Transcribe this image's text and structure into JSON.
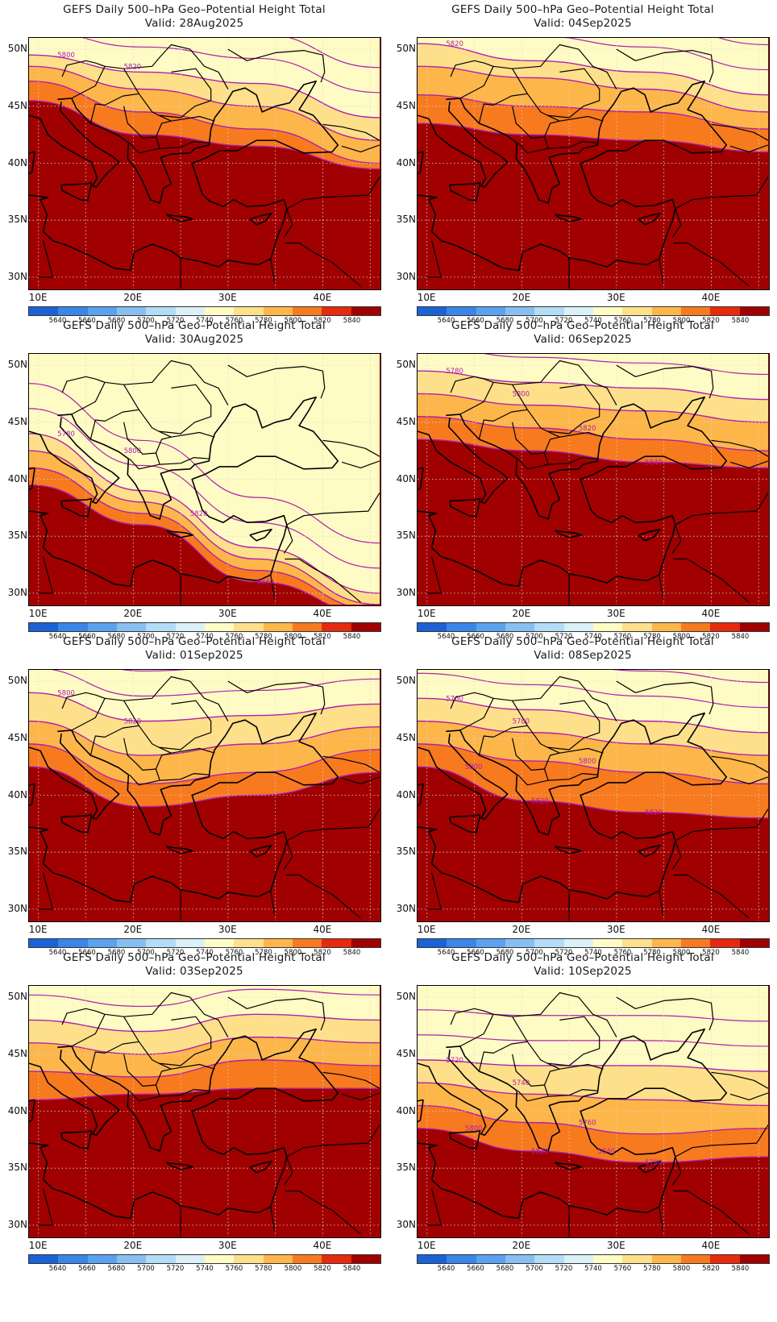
{
  "panels": [
    {
      "title": "GEFS Daily 500–hPa Geo–Potential Height Total",
      "valid": "Valid: 28Aug2025",
      "col": 0,
      "row": 0,
      "contour_labels": [
        "5800",
        "5820"
      ],
      "bands": [
        [
          49.5,
          48.0,
          47.0,
          44.0
        ],
        [
          48.5,
          46.5,
          45.0,
          42.0
        ],
        [
          47.2,
          44.5,
          43.0,
          40.0
        ],
        [
          45.5,
          42.5,
          41.5,
          39.5
        ]
      ]
    },
    {
      "title": "GEFS Daily 500–hPa Geo–Potential Height Total",
      "valid": "Valid: 04Sep2025",
      "col": 1,
      "row": 0,
      "contour_labels": [
        "5820"
      ],
      "bands": [
        [
          50.5,
          49.0,
          48.0,
          46.0
        ],
        [
          48.5,
          47.5,
          46.5,
          44.5
        ],
        [
          46.0,
          45.0,
          44.5,
          43.0
        ],
        [
          43.5,
          42.5,
          42.0,
          41.0
        ]
      ]
    },
    {
      "title": "GEFS Daily 500–hPa Geo–Potential Height Total",
      "valid": "Valid: 30Aug2025",
      "col": 0,
      "row": 1,
      "contour_labels": [
        "5780",
        "5800",
        "5820",
        "5840"
      ],
      "bands": [
        [
          44.0,
          39.0,
          34.0,
          30.0
        ],
        [
          42.5,
          38.0,
          33.0,
          29.0
        ],
        [
          41.0,
          37.0,
          32.0,
          28.5
        ],
        [
          39.5,
          36.0,
          31.0,
          28.0
        ]
      ]
    },
    {
      "title": "GEFS Daily 500–hPa Geo–Potential Height Total",
      "valid": "Valid: 06Sep2025",
      "col": 1,
      "row": 1,
      "contour_labels": [
        "5780",
        "5800",
        "5820",
        "5840"
      ],
      "bands": [
        [
          49.5,
          48.5,
          48.0,
          47.0
        ],
        [
          47.5,
          46.5,
          46.0,
          45.0
        ],
        [
          45.5,
          44.5,
          43.5,
          42.5
        ],
        [
          43.5,
          42.5,
          41.5,
          41.0
        ]
      ]
    },
    {
      "title": "GEFS Daily 500–hPa Geo–Potential Height Total",
      "valid": "Valid: 01Sep2025",
      "col": 0,
      "row": 2,
      "contour_labels": [
        "5800",
        "5820"
      ],
      "bands": [
        [
          49.0,
          46.5,
          47.0,
          48.0
        ],
        [
          46.5,
          43.5,
          44.5,
          46.0
        ],
        [
          44.5,
          41.0,
          42.0,
          44.0
        ],
        [
          42.5,
          39.0,
          40.0,
          42.0
        ]
      ]
    },
    {
      "title": "GEFS Daily 500–hPa Geo–Potential Height Total",
      "valid": "Valid: 08Sep2025",
      "col": 1,
      "row": 2,
      "contour_labels": [
        "5760",
        "5780",
        "5800",
        "5820",
        "5800",
        "5820"
      ],
      "bands": [
        [
          48.5,
          47.5,
          46.5,
          45.5
        ],
        [
          46.5,
          45.5,
          44.5,
          43.5
        ],
        [
          44.5,
          43.0,
          42.0,
          41.0
        ],
        [
          42.5,
          39.5,
          38.5,
          38.0
        ]
      ]
    },
    {
      "title": "GEFS Daily 500–hPa Geo–Potential Height Total",
      "valid": "Valid: 03Sep2025",
      "col": 0,
      "row": 3,
      "contour_labels": [],
      "bands": [
        [
          48.0,
          47.0,
          48.5,
          48.0
        ],
        [
          46.0,
          45.0,
          46.5,
          46.0
        ],
        [
          43.5,
          43.0,
          44.5,
          44.0
        ],
        [
          41.0,
          41.5,
          42.0,
          42.0
        ]
      ]
    },
    {
      "title": "GEFS Daily 500–hPa Geo–Potential Height Total",
      "valid": "Valid: 10Sep2025",
      "col": 1,
      "row": 3,
      "contour_labels": [
        "5720",
        "5740",
        "5760",
        "5780",
        "5800",
        "5820",
        "5840"
      ],
      "bands": [
        [
          44.5,
          44.0,
          44.0,
          43.5
        ],
        [
          42.5,
          41.5,
          41.0,
          40.5
        ],
        [
          40.5,
          39.0,
          38.0,
          38.5
        ],
        [
          38.5,
          36.5,
          35.5,
          36.0
        ]
      ]
    }
  ],
  "y_axis": {
    "ticks": [
      "50N",
      "45N",
      "40N",
      "35N",
      "30N"
    ],
    "lat_values": [
      50,
      45,
      40,
      35,
      30
    ]
  },
  "x_axis": {
    "ticks": [
      "10E",
      "20E",
      "30E",
      "40E"
    ],
    "lon_values": [
      10,
      20,
      30,
      40
    ]
  },
  "extent": {
    "lon_min": 9,
    "lon_max": 46,
    "lat_min": 29,
    "lat_max": 51
  },
  "colorbar": {
    "labels": [
      "5640",
      "5660",
      "5680",
      "5700",
      "5720",
      "5740",
      "5760",
      "5780",
      "5800",
      "5820",
      "5840"
    ],
    "colors": [
      "#1c62d6",
      "#3a86e8",
      "#5aa2ef",
      "#87bff2",
      "#b3dcf6",
      "#d9f1f7",
      "#fffbc4",
      "#ffe08a",
      "#fdb64a",
      "#f77a1e",
      "#e52a0e",
      "#a00000"
    ]
  },
  "contour_color": "#b020b0"
}
